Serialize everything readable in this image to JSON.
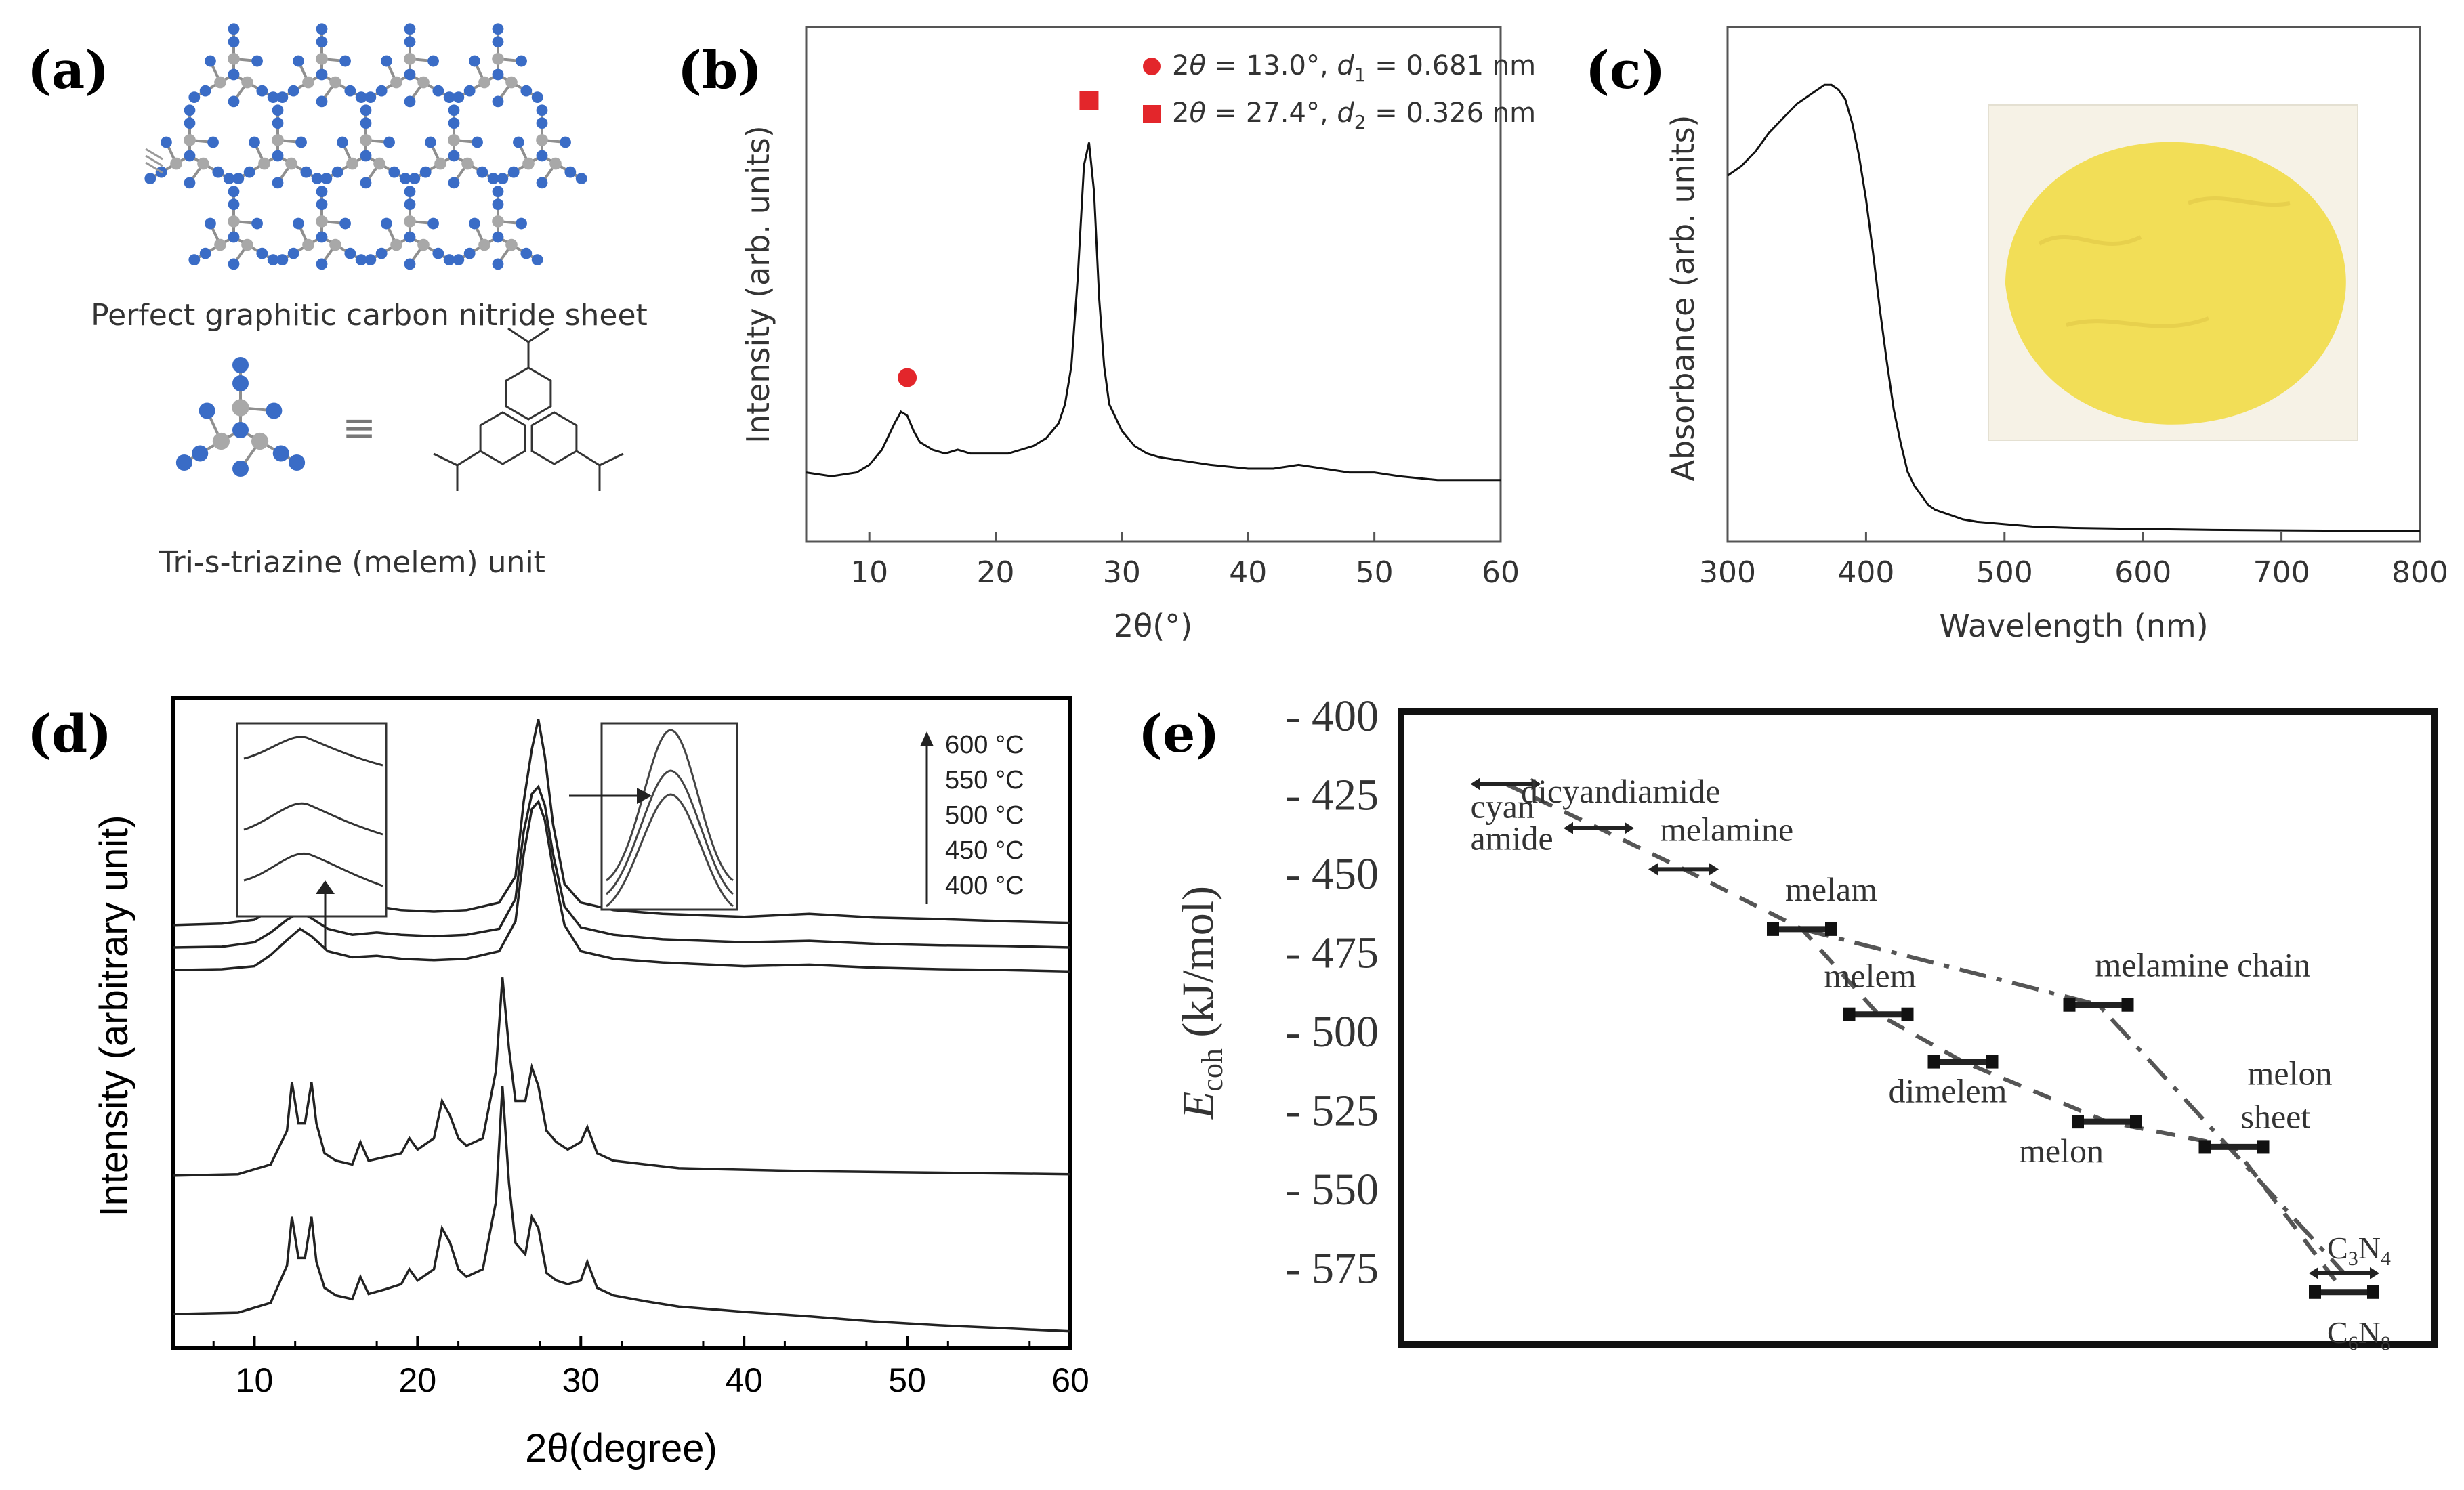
{
  "panels": {
    "a": {
      "label": "(a)",
      "caption_sheet": "Perfect graphitic carbon nitride sheet",
      "equiv": "≡",
      "caption_unit": "Tri-s-triazine (melem) unit",
      "colors": {
        "nitrogen": "#3a6cc6",
        "carbon": "#a8a8a8"
      }
    },
    "b": {
      "label": "(b)"
    },
    "c": {
      "label": "(c)",
      "powder_color": "#f2de57"
    },
    "d": {
      "label": "(d)"
    },
    "e": {
      "label": "(e)"
    }
  },
  "chart_data": [
    {
      "id": "b",
      "type": "line",
      "title": "",
      "xlabel": "2θ(°)",
      "ylabel": "Intensity (arb. units)",
      "xlim": [
        5,
        60
      ],
      "ylim": [
        0,
        1
      ],
      "xticks": [
        10,
        20,
        30,
        40,
        50,
        60
      ],
      "x": [
        5,
        7,
        9,
        10,
        11,
        12,
        12.5,
        13,
        13.5,
        14,
        15,
        16,
        17,
        18,
        19,
        20,
        21,
        22,
        23,
        24,
        25,
        25.5,
        26,
        26.5,
        27,
        27.4,
        27.8,
        28.2,
        28.6,
        29,
        30,
        31,
        32,
        33,
        35,
        37,
        40,
        42,
        44,
        46,
        48,
        50,
        52,
        55,
        58,
        60
      ],
      "y": [
        0.04,
        0.03,
        0.04,
        0.06,
        0.1,
        0.17,
        0.2,
        0.19,
        0.15,
        0.12,
        0.1,
        0.09,
        0.1,
        0.09,
        0.09,
        0.09,
        0.09,
        0.1,
        0.11,
        0.13,
        0.17,
        0.22,
        0.32,
        0.55,
        0.85,
        0.91,
        0.78,
        0.5,
        0.32,
        0.22,
        0.15,
        0.11,
        0.09,
        0.08,
        0.07,
        0.06,
        0.05,
        0.05,
        0.06,
        0.05,
        0.04,
        0.04,
        0.03,
        0.02,
        0.02,
        0.02
      ],
      "markers": [
        {
          "shape": "circle",
          "x": 13.0,
          "y": 0.29,
          "color": "#e3262b"
        },
        {
          "shape": "square",
          "x": 27.4,
          "y": 1.02,
          "color": "#e3262b"
        }
      ],
      "legend": [
        {
          "shape": "circle",
          "color": "#e3262b",
          "text": "2θ = 13.0°, d1 = 0.681 nm",
          "theta": "13.0°",
          "d_sub": "1",
          "d_value": "0.681 nm"
        },
        {
          "shape": "square",
          "color": "#e3262b",
          "text": "2θ = 27.4°, d2 = 0.326 nm",
          "theta": "27.4°",
          "d_sub": "2",
          "d_value": "0.326 nm"
        }
      ]
    },
    {
      "id": "c",
      "type": "line",
      "title": "",
      "xlabel": "Wavelength (nm)",
      "ylabel": "Absorbance (arb. units)",
      "xlim": [
        300,
        800
      ],
      "ylim": [
        0,
        1
      ],
      "xticks": [
        300,
        400,
        500,
        600,
        700,
        800
      ],
      "x": [
        300,
        310,
        320,
        330,
        340,
        350,
        360,
        370,
        375,
        380,
        385,
        390,
        395,
        400,
        405,
        410,
        415,
        420,
        425,
        430,
        435,
        440,
        445,
        450,
        460,
        470,
        480,
        500,
        520,
        550,
        600,
        650,
        700,
        750,
        800
      ],
      "y": [
        0.75,
        0.77,
        0.8,
        0.84,
        0.87,
        0.9,
        0.92,
        0.94,
        0.94,
        0.93,
        0.91,
        0.86,
        0.79,
        0.7,
        0.59,
        0.47,
        0.36,
        0.26,
        0.19,
        0.13,
        0.1,
        0.08,
        0.06,
        0.05,
        0.04,
        0.03,
        0.025,
        0.02,
        0.015,
        0.012,
        0.01,
        0.008,
        0.007,
        0.006,
        0.005
      ]
    },
    {
      "id": "d",
      "type": "line",
      "title": "",
      "xlabel": "2θ(degree)",
      "ylabel": "Intensity (arbitrary unit)",
      "xlim": [
        5,
        60
      ],
      "ylim": [
        0,
        8.6
      ],
      "xticks": [
        10,
        20,
        30,
        40,
        50,
        60
      ],
      "legend_labels": [
        "600 °C",
        "550 °C",
        "500 °C",
        "450 °C",
        "400 °C"
      ],
      "series": [
        {
          "name": "600 °C",
          "x": [
            5,
            8,
            10,
            11,
            12,
            12.8,
            13.5,
            14.5,
            16,
            17.5,
            19,
            21,
            23,
            25,
            26,
            26.5,
            27,
            27.4,
            27.8,
            28.3,
            29,
            30,
            32,
            35,
            40,
            44,
            48,
            52,
            56,
            60
          ],
          "y": [
            5.65,
            5.67,
            5.72,
            5.85,
            6.0,
            6.08,
            6.02,
            5.92,
            5.86,
            5.9,
            5.85,
            5.83,
            5.85,
            5.95,
            6.3,
            7.3,
            8.0,
            8.4,
            7.9,
            7.0,
            6.2,
            5.95,
            5.85,
            5.8,
            5.76,
            5.8,
            5.75,
            5.73,
            5.7,
            5.68
          ]
        },
        {
          "name": "550 °C",
          "x": [
            5,
            8,
            10,
            11,
            12,
            12.8,
            13.5,
            14.5,
            16,
            17.5,
            19,
            21,
            23,
            25,
            26,
            26.5,
            27,
            27.4,
            27.8,
            28.3,
            29,
            30,
            32,
            35,
            40,
            44,
            48,
            52,
            56,
            60
          ],
          "y": [
            5.35,
            5.36,
            5.42,
            5.55,
            5.72,
            5.82,
            5.74,
            5.6,
            5.52,
            5.55,
            5.52,
            5.5,
            5.52,
            5.6,
            6.0,
            6.9,
            7.4,
            7.5,
            7.25,
            6.6,
            5.9,
            5.62,
            5.52,
            5.46,
            5.42,
            5.44,
            5.4,
            5.38,
            5.37,
            5.35
          ]
        },
        {
          "name": "500 °C",
          "x": [
            5,
            8,
            10,
            11,
            12,
            12.8,
            13.5,
            14.5,
            16,
            17.5,
            19,
            21,
            23,
            25,
            26,
            26.5,
            27,
            27.4,
            27.8,
            28.3,
            29,
            30,
            32,
            35,
            40,
            44,
            48,
            52,
            56,
            60
          ],
          "y": [
            5.05,
            5.06,
            5.1,
            5.25,
            5.45,
            5.6,
            5.5,
            5.3,
            5.22,
            5.24,
            5.2,
            5.18,
            5.2,
            5.3,
            5.7,
            6.6,
            7.2,
            7.3,
            7.05,
            6.4,
            5.65,
            5.3,
            5.2,
            5.15,
            5.1,
            5.12,
            5.08,
            5.06,
            5.05,
            5.03
          ]
        },
        {
          "name": "450 °C",
          "x": [
            5,
            9,
            11,
            12,
            12.3,
            12.7,
            13.1,
            13.5,
            13.8,
            14.3,
            15,
            16,
            16.5,
            17,
            18,
            19,
            19.5,
            20,
            21,
            21.5,
            22,
            22.5,
            23,
            24,
            24.8,
            25.2,
            25.6,
            26,
            26.6,
            27,
            27.4,
            27.9,
            28.5,
            29.2,
            30,
            30.4,
            31,
            32,
            34,
            36,
            40,
            44,
            48,
            52,
            56,
            60
          ],
          "y": [
            2.3,
            2.32,
            2.45,
            2.9,
            3.55,
            3.0,
            3.0,
            3.55,
            3.0,
            2.6,
            2.5,
            2.45,
            2.75,
            2.5,
            2.55,
            2.6,
            2.8,
            2.65,
            2.8,
            3.3,
            3.1,
            2.8,
            2.7,
            2.8,
            3.7,
            4.95,
            4.0,
            3.3,
            3.3,
            3.75,
            3.5,
            2.9,
            2.75,
            2.65,
            2.75,
            2.95,
            2.6,
            2.5,
            2.45,
            2.4,
            2.38,
            2.36,
            2.35,
            2.34,
            2.33,
            2.32
          ]
        },
        {
          "name": "400 °C",
          "x": [
            5,
            9,
            11,
            12,
            12.3,
            12.7,
            13.1,
            13.5,
            13.8,
            14.3,
            15,
            16,
            16.5,
            17,
            18,
            19,
            19.5,
            20,
            21,
            21.5,
            22,
            22.5,
            23,
            24,
            24.8,
            25.2,
            25.6,
            26,
            26.6,
            27,
            27.4,
            27.9,
            28.5,
            29.2,
            30,
            30.4,
            31,
            32,
            34,
            36,
            40,
            44,
            48,
            52,
            56,
            60
          ],
          "y": [
            0.45,
            0.47,
            0.6,
            1.1,
            1.75,
            1.2,
            1.2,
            1.75,
            1.15,
            0.8,
            0.7,
            0.65,
            0.95,
            0.72,
            0.78,
            0.85,
            1.05,
            0.9,
            1.05,
            1.6,
            1.4,
            1.05,
            0.95,
            1.05,
            1.95,
            3.5,
            2.2,
            1.4,
            1.25,
            1.75,
            1.6,
            1.0,
            0.9,
            0.85,
            0.9,
            1.15,
            0.8,
            0.7,
            0.62,
            0.55,
            0.48,
            0.42,
            0.35,
            0.3,
            0.26,
            0.22
          ]
        }
      ]
    },
    {
      "id": "e",
      "type": "scatter",
      "title": "",
      "xlabel": "",
      "ylabel": "Ecoh (kJ/mol)",
      "ylabel_main": "E",
      "ylabel_sub": "coh",
      "ylabel_rest": " (kJ/mol)",
      "ylim": [
        -400,
        -600
      ],
      "yticks": [
        -400,
        -425,
        -450,
        -475,
        -500,
        -525,
        -550,
        -575
      ],
      "ytick_labels": [
        "- 400",
        "- 425",
        "- 450",
        "- 475",
        "- 500",
        "- 525",
        "- 550",
        "- 575"
      ],
      "xlim": [
        0,
        11
      ],
      "points": [
        {
          "label": "cyan amide",
          "label_line1": "cyan",
          "label_line2": "amide",
          "x": 0.5,
          "y": -422
        },
        {
          "label": "dicyandiamide",
          "x": 1.6,
          "y": -436
        },
        {
          "label": "melamine",
          "x": 2.6,
          "y": -449
        },
        {
          "label": "melam",
          "x": 4.0,
          "y": -468
        },
        {
          "label": "melem",
          "x": 4.9,
          "y": -495
        },
        {
          "label": "dimelem",
          "x": 5.9,
          "y": -510
        },
        {
          "label": "melon",
          "x": 7.6,
          "y": -529
        },
        {
          "label": "melamine chain",
          "x": 7.5,
          "y": -492
        },
        {
          "label": "melon sheet",
          "label_line1": "melon",
          "label_line2": "sheet",
          "x": 9.1,
          "y": -537
        },
        {
          "label": "C3N4",
          "x": 10.4,
          "y": -577
        },
        {
          "label": "C6N8",
          "x": 10.4,
          "y": -583
        }
      ],
      "formula_labels": [
        {
          "id": "C3N4",
          "parts": [
            "C",
            "3",
            "N",
            "4"
          ]
        },
        {
          "id": "C6N8",
          "parts": [
            "C",
            "6",
            "N",
            "8"
          ]
        }
      ]
    }
  ]
}
